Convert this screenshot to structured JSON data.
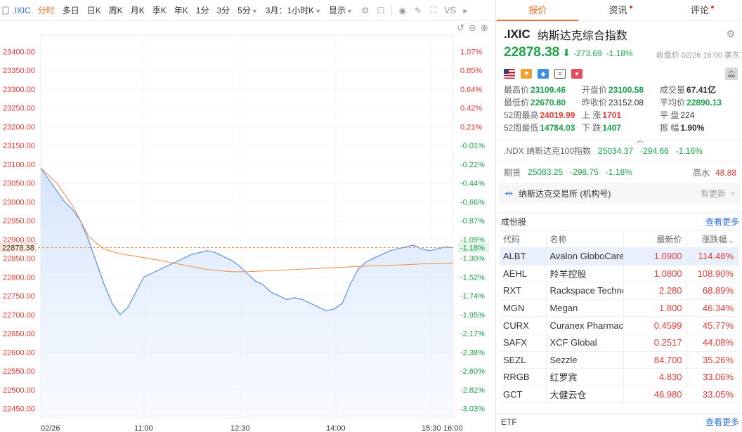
{
  "toolbar": {
    "symbol": ".IXIC",
    "periods": [
      "分时",
      "多日",
      "日K",
      "周K",
      "月K",
      "季K",
      "年K",
      "1分",
      "3分"
    ],
    "period_5": "5分",
    "range": "3月：1小时K",
    "display": "显示",
    "vs": "VS"
  },
  "chart_data": {
    "type": "line",
    "y_ticks": [
      "23400.00",
      "23350.00",
      "23300.00",
      "23250.00",
      "23200.00",
      "23150.00",
      "23100.00",
      "23050.00",
      "23000.00",
      "22950.00",
      "22900.00",
      "22850.00",
      "22800.00",
      "22750.00",
      "22700.00",
      "22650.00",
      "22600.00",
      "22550.00",
      "22500.00",
      "22450.00"
    ],
    "pct_ticks": [
      "1.07%",
      "0.85%",
      "0.64%",
      "0.42%",
      "0.21%",
      "-0.01%",
      "-0.22%",
      "-0.44%",
      "-0.66%",
      "-0.87%",
      "-1.09%",
      "-1.30%",
      "-1.52%",
      "-1.74%",
      "-1.95%",
      "-2.17%",
      "-2.38%",
      "-2.60%",
      "-2.82%",
      "-3.03%"
    ],
    "current_price": "22878.38",
    "current_pct": "-1.18%",
    "x_labels": [
      "02/26",
      "11:00",
      "12:30",
      "14:00",
      "15:30",
      "16:00"
    ],
    "ylim": [
      22425,
      23425
    ],
    "series": [
      {
        "values": [
          23090,
          23060,
          23030,
          23000,
          22980,
          22950,
          22900,
          22840,
          22780,
          22730,
          22700,
          22720,
          22760,
          22800,
          22810,
          22820,
          22830,
          22840,
          22850,
          22860,
          22865,
          22870,
          22865,
          22855,
          22845,
          22830,
          22810,
          22790,
          22780,
          22760,
          22750,
          22740,
          22745,
          22740,
          22730,
          22720,
          22710,
          22715,
          22730,
          22780,
          22820,
          22840,
          22850,
          22860,
          22870,
          22875,
          22880,
          22885,
          22875,
          22870,
          22875,
          22880,
          22878
        ]
      },
      {
        "values": [
          23090,
          23070,
          23050,
          23020,
          22990,
          22950,
          22910,
          22890,
          22875,
          22868,
          22862,
          22858,
          22855,
          22852,
          22848,
          22844,
          22840,
          22836,
          22832,
          22828,
          22824,
          22820,
          22818,
          22816,
          22814,
          22814,
          22814,
          22815,
          22816,
          22817,
          22818,
          22819,
          22820,
          22821,
          22822,
          22823,
          22824,
          22825,
          22826,
          22827,
          22828,
          22829,
          22830,
          22830,
          22831,
          22832,
          22833,
          22834,
          22835,
          22835,
          22836,
          22836,
          22837
        ]
      }
    ]
  },
  "tabs": {
    "quote": "报价",
    "news": "资讯",
    "comments": "评论"
  },
  "header": {
    "symbol": ".IXIC",
    "name": "纳斯达克综合指数",
    "price": "22878.38",
    "change": "-273.69",
    "change_pct": "-1.18%",
    "close_time": "收盘价 02/26 16:00 美东"
  },
  "stats": [
    {
      "k": "最高价",
      "v": "23109.46",
      "c": "g"
    },
    {
      "k": "开盘价",
      "v": "23100.58",
      "c": "g"
    },
    {
      "k": "成交量",
      "v": "67.41亿",
      "c": "b"
    },
    {
      "k": "最低价",
      "v": "22670.80",
      "c": "g"
    },
    {
      "k": "昨收价",
      "v": "23152.08",
      "c": "n"
    },
    {
      "k": "平均价",
      "v": "22890.13",
      "c": "g"
    },
    {
      "k": "52周最高",
      "v": "24019.99",
      "c": "r"
    },
    {
      "k": "上  涨",
      "v": "1701",
      "c": "r"
    },
    {
      "k": "平  盘",
      "v": "224",
      "c": "n"
    },
    {
      "k": "52周最低",
      "v": "14784.03",
      "c": "g"
    },
    {
      "k": "下  跌",
      "v": "1407",
      "c": "g"
    },
    {
      "k": "振  幅",
      "v": "1.90%",
      "c": "b"
    }
  ],
  "ndx": {
    "name": ".NDX 纳斯达克100指数",
    "price": "25034.37",
    "change": "-294.66",
    "pct": "-1.16%"
  },
  "futures": {
    "label": "期货",
    "price": "25083.25",
    "change": "-298.75",
    "pct": "-1.18%",
    "hs_label": "高水",
    "hs_value": "48.88"
  },
  "exchange": {
    "name": "纳斯达克交易所 (机构号)",
    "update": "有更新"
  },
  "constituents": {
    "title": "成份股",
    "more": "查看更多",
    "headers": [
      "代码",
      "名称",
      "最新价",
      "涨跌幅"
    ],
    "rows": [
      [
        "ALBT",
        "Avalon GloboCare",
        "1.0900",
        "114.48%"
      ],
      [
        "AEHL",
        "羚羊控股",
        "1.0800",
        "108.90%"
      ],
      [
        "RXT",
        "Rackspace Technology",
        "2.280",
        "68.89%"
      ],
      [
        "MGN",
        "Megan",
        "1.800",
        "46.34%"
      ],
      [
        "CURX",
        "Curanex Pharmaceuticals",
        "0.4599",
        "45.77%"
      ],
      [
        "SAFX",
        "XCF Global",
        "0.2517",
        "44.08%"
      ],
      [
        "SEZL",
        "Sezzle",
        "84.700",
        "35.26%"
      ],
      [
        "RRGB",
        "红罗宾",
        "4.830",
        "33.06%"
      ],
      [
        "GCT",
        "大健云仓",
        "46.980",
        "33.05%"
      ]
    ]
  },
  "etf": {
    "label": "ETF",
    "more": "查看更多"
  },
  "colors": {
    "up": "#e53935",
    "down": "#1aa34a",
    "accent": "#f06a2a",
    "link": "#2b6fd6"
  }
}
